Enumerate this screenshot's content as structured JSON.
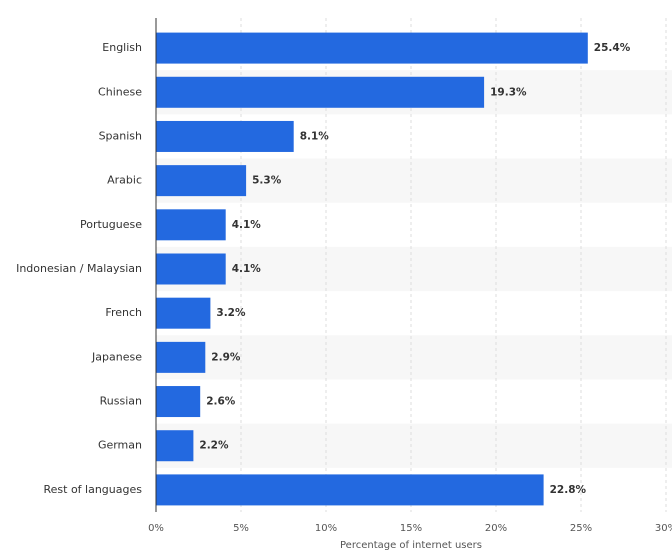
{
  "chart_data": {
    "type": "bar",
    "orientation": "horizontal",
    "categories": [
      "English",
      "Chinese",
      "Spanish",
      "Arabic",
      "Portuguese",
      "Indonesian / Malaysian",
      "French",
      "Japanese",
      "Russian",
      "German",
      "Rest of languages"
    ],
    "values": [
      25.4,
      19.3,
      8.1,
      5.3,
      4.1,
      4.1,
      3.2,
      2.9,
      2.6,
      2.2,
      22.8
    ],
    "value_labels": [
      "25.4%",
      "19.3%",
      "8.1%",
      "5.3%",
      "4.1%",
      "4.1%",
      "3.2%",
      "2.9%",
      "2.6%",
      "2.2%",
      "22.8%"
    ],
    "color": "#2369e0",
    "xlabel": "Percentage of internet users",
    "xlim": [
      0,
      30
    ],
    "xticks": [
      {
        "value": 0,
        "label": "0%"
      },
      {
        "value": 5,
        "label": "5%"
      },
      {
        "value": 10,
        "label": "10%"
      },
      {
        "value": 15,
        "label": "15%"
      },
      {
        "value": 20,
        "label": "20%"
      },
      {
        "value": 25,
        "label": "25%"
      },
      {
        "value": 30,
        "label": "30%"
      }
    ],
    "grid": true
  }
}
